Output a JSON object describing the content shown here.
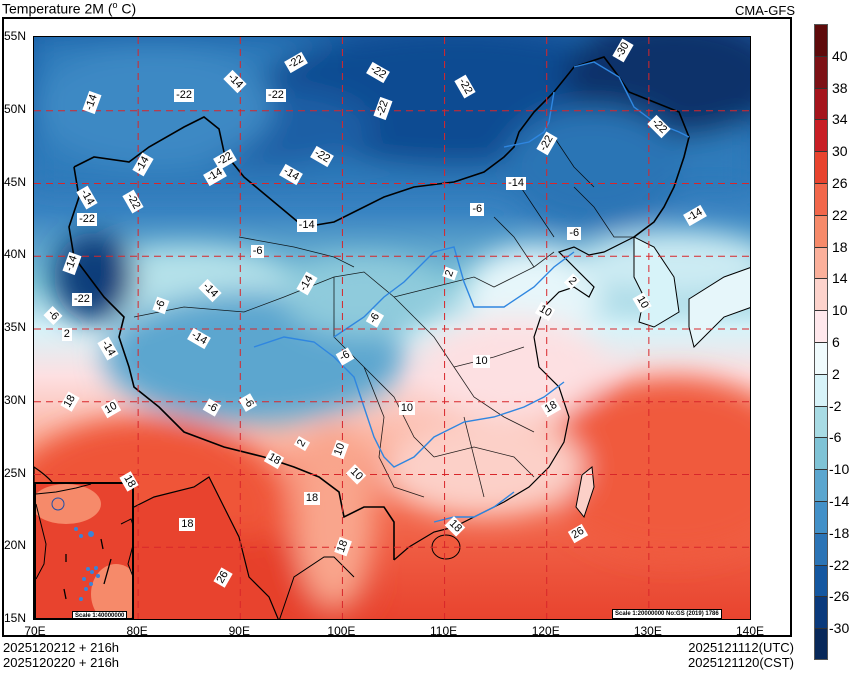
{
  "header": {
    "title": "Temperature  2M (",
    "title_degree": "o",
    "title_unit": " C)",
    "source": "CMA-GFS"
  },
  "footer": {
    "init_left": "2025120212 + 216h",
    "init_left_local": "2025120220 + 216h",
    "valid_utc": "2025121112(UTC)",
    "valid_cst": "2025121120(CST)"
  },
  "scale_labels": {
    "main": "Scale 1:20000000 No:GS (2019) 1786",
    "inset": "Scale 1:40000000"
  },
  "chart_data": {
    "type": "heatmap",
    "title": "Temperature 2M (°C)",
    "model": "CMA-GFS",
    "init_time_utc": "2025120212",
    "init_time_cst": "2025120220",
    "forecast_hour": "+216h",
    "valid_time_utc": "2025121112(UTC)",
    "valid_time_cst": "2025121120(CST)",
    "xlabel": "Longitude",
    "ylabel": "Latitude",
    "x_ticks": [
      "70E",
      "80E",
      "90E",
      "100E",
      "110E",
      "120E",
      "130E",
      "140E"
    ],
    "y_ticks": [
      "55N",
      "50N",
      "45N",
      "40N",
      "35N",
      "30N",
      "25N",
      "20N",
      "15N"
    ],
    "xlim": [
      70,
      140
    ],
    "ylim": [
      15,
      55
    ],
    "grid": "dashed red at 10° lon / 5° lat",
    "colorbar": {
      "position": "right",
      "levels": [
        40,
        38,
        34,
        30,
        26,
        22,
        18,
        14,
        10,
        6,
        2,
        -2,
        -6,
        -10,
        -14,
        -18,
        -22,
        -26,
        -30
      ],
      "colors": [
        "#5e0a0b",
        "#7d1116",
        "#a5141c",
        "#c81e25",
        "#e8432e",
        "#f2674b",
        "#f68a6a",
        "#fbb09b",
        "#fdd3cc",
        "#ffe8ec",
        "#f0fbfd",
        "#d7f3f9",
        "#a8dbe4",
        "#7fc3d6",
        "#5ba6cf",
        "#4290c8",
        "#2b74b6",
        "#1457a0",
        "#0a3a7c",
        "#08285a"
      ]
    },
    "contour_labels": [
      {
        "value": -30,
        "lon": 127.5,
        "lat": 54.1
      },
      {
        "value": -22,
        "lon": 95.5,
        "lat": 53.3
      },
      {
        "value": -22,
        "lon": 103.5,
        "lat": 52.6
      },
      {
        "value": -22,
        "lon": 112,
        "lat": 51.6
      },
      {
        "value": -22,
        "lon": 84.5,
        "lat": 51.0
      },
      {
        "value": -22,
        "lon": 93.5,
        "lat": 51.0
      },
      {
        "value": -22,
        "lon": 104,
        "lat": 50.1
      },
      {
        "value": -22,
        "lon": 131,
        "lat": 48.9
      },
      {
        "value": -22,
        "lon": 120,
        "lat": 47.7
      },
      {
        "value": -22,
        "lon": 88.5,
        "lat": 46.6
      },
      {
        "value": -22,
        "lon": 98,
        "lat": 46.8
      },
      {
        "value": -22,
        "lon": 79.5,
        "lat": 43.7
      },
      {
        "value": -22,
        "lon": 75,
        "lat": 42.5
      },
      {
        "value": -22,
        "lon": 74.5,
        "lat": 37.0
      },
      {
        "value": -14,
        "lon": 75.5,
        "lat": 50.5
      },
      {
        "value": -14,
        "lon": 89.5,
        "lat": 52.0
      },
      {
        "value": -14,
        "lon": 80.5,
        "lat": 46.3
      },
      {
        "value": -14,
        "lon": 87.5,
        "lat": 45.5
      },
      {
        "value": -14,
        "lon": 95,
        "lat": 45.6
      },
      {
        "value": -14,
        "lon": 75,
        "lat": 44.0
      },
      {
        "value": -14,
        "lon": 117,
        "lat": 45.0
      },
      {
        "value": -14,
        "lon": 96.5,
        "lat": 42.1
      },
      {
        "value": -14,
        "lon": 73.5,
        "lat": 39.5
      },
      {
        "value": -14,
        "lon": 87,
        "lat": 37.6
      },
      {
        "value": -14,
        "lon": 96.5,
        "lat": 38.1
      },
      {
        "value": -14,
        "lon": 134.5,
        "lat": 42.8
      },
      {
        "value": -14,
        "lon": 86,
        "lat": 34.3
      },
      {
        "value": -14,
        "lon": 77,
        "lat": 33.6
      },
      {
        "value": -6,
        "lon": 113.5,
        "lat": 43.2
      },
      {
        "value": -6,
        "lon": 92,
        "lat": 40.3
      },
      {
        "value": -6,
        "lon": 82.5,
        "lat": 36.6
      },
      {
        "value": -6,
        "lon": 72,
        "lat": 35.9
      },
      {
        "value": -6,
        "lon": 103.5,
        "lat": 35.7
      },
      {
        "value": -6,
        "lon": 100.5,
        "lat": 33.1
      },
      {
        "value": -6,
        "lon": 87.5,
        "lat": 29.6
      },
      {
        "value": -6,
        "lon": 91,
        "lat": 29.9
      },
      {
        "value": -6,
        "lon": 123,
        "lat": 41.5
      },
      {
        "value": 2,
        "lon": 73.5,
        "lat": 34.6
      },
      {
        "value": 2,
        "lon": 111,
        "lat": 38.8
      },
      {
        "value": 2,
        "lon": 123,
        "lat": 38.2
      },
      {
        "value": 2,
        "lon": 96.5,
        "lat": 27.1
      },
      {
        "value": 10,
        "lon": 77.5,
        "lat": 29.5
      },
      {
        "value": 10,
        "lon": 120,
        "lat": 36.2
      },
      {
        "value": 10,
        "lon": 129.5,
        "lat": 36.8
      },
      {
        "value": 10,
        "lon": 113.8,
        "lat": 32.7
      },
      {
        "value": 10,
        "lon": 106.5,
        "lat": 29.5
      },
      {
        "value": 10,
        "lon": 100,
        "lat": 26.7
      },
      {
        "value": 10,
        "lon": 101.5,
        "lat": 25.0
      },
      {
        "value": 18,
        "lon": 73.5,
        "lat": 30.0
      },
      {
        "value": 18,
        "lon": 120.6,
        "lat": 29.6
      },
      {
        "value": 18,
        "lon": 93.5,
        "lat": 26.0
      },
      {
        "value": 18,
        "lon": 79.3,
        "lat": 24.5
      },
      {
        "value": 18,
        "lon": 97.2,
        "lat": 23.3
      },
      {
        "value": 18,
        "lon": 85,
        "lat": 21.5
      },
      {
        "value": 18,
        "lon": 100.3,
        "lat": 20.0
      },
      {
        "value": 18,
        "lon": 111.2,
        "lat": 21.4
      },
      {
        "value": 26,
        "lon": 88.5,
        "lat": 17.9
      },
      {
        "value": 26,
        "lon": 123.3,
        "lat": 20.9
      }
    ],
    "summary": "Cold air (-14 to -30°C) over Mongolia, Siberia, NE China and Tibetan Plateau; warm (18 to 26°C) over South China, Indochina, India, South China Sea."
  }
}
